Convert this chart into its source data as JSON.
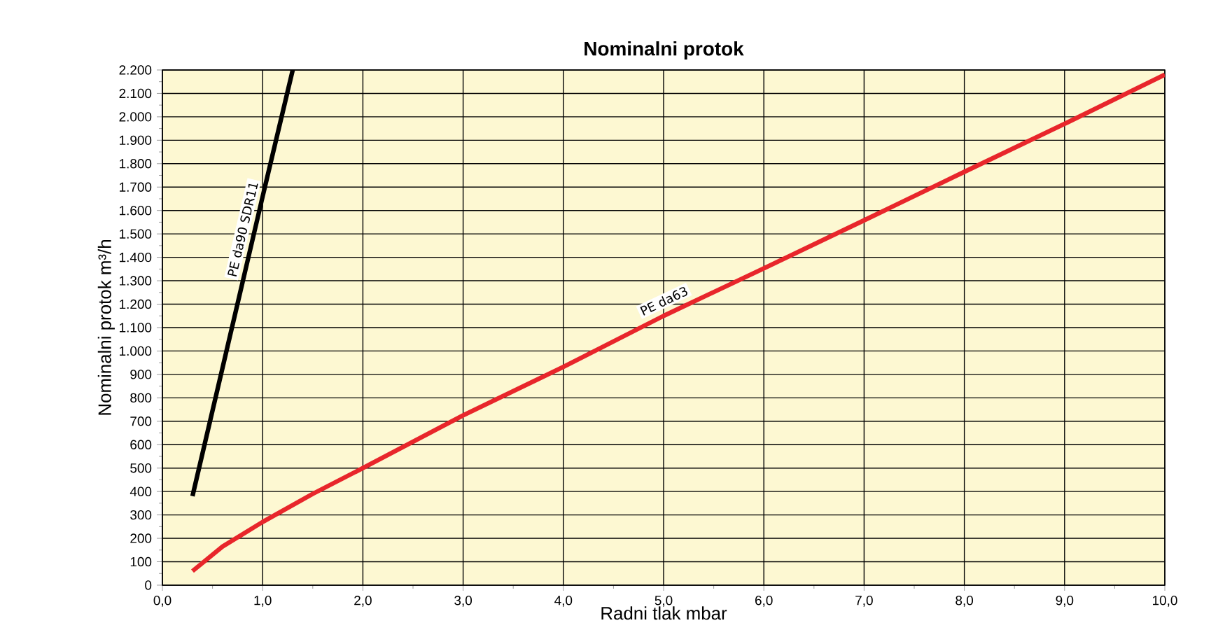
{
  "chart_data": {
    "type": "line",
    "title": "Nominalni protok",
    "xlabel": "Radni tlak mbar",
    "ylabel": "Nominalni protok m³/h",
    "xlim": [
      0,
      10
    ],
    "ylim": [
      0,
      2200
    ],
    "xticks": [
      {
        "value": 0,
        "label": "0,0"
      },
      {
        "value": 1,
        "label": "1,0"
      },
      {
        "value": 2,
        "label": "2,0"
      },
      {
        "value": 3,
        "label": "3,0"
      },
      {
        "value": 4,
        "label": "4,0"
      },
      {
        "value": 5,
        "label": "5,0"
      },
      {
        "value": 6,
        "label": "6,0"
      },
      {
        "value": 7,
        "label": "7,0"
      },
      {
        "value": 8,
        "label": "8,0"
      },
      {
        "value": 9,
        "label": "9,0"
      },
      {
        "value": 10,
        "label": "10,0"
      }
    ],
    "yticks": [
      0,
      100,
      200,
      300,
      400,
      500,
      600,
      700,
      800,
      900,
      {
        "value": 1000,
        "label": "1.000"
      },
      {
        "value": 1100,
        "label": "1.100"
      },
      {
        "value": 1200,
        "label": "1.200"
      },
      {
        "value": 1300,
        "label": "1.300"
      },
      {
        "value": 1400,
        "label": "1.400"
      },
      {
        "value": 1500,
        "label": "1.500"
      },
      {
        "value": 1600,
        "label": "1.600"
      },
      {
        "value": 1700,
        "label": "1.700"
      },
      {
        "value": 1800,
        "label": "1.800"
      },
      {
        "value": 1900,
        "label": "1.900"
      },
      {
        "value": 2000,
        "label": "2.000"
      },
      {
        "value": 2100,
        "label": "2.100"
      },
      {
        "value": 2200,
        "label": "2.200"
      }
    ],
    "grid": true,
    "legend": false,
    "marker": "none",
    "line_style": "solid",
    "series": [
      {
        "name": "PE da90 SDR11",
        "color": "#000000",
        "x": [
          0.3,
          1.0,
          1.3
        ],
        "values": [
          380,
          1660,
          2200
        ]
      },
      {
        "name": "PE da63",
        "color": "#e8262b",
        "x": [
          0.3,
          0.6,
          1.0,
          1.5,
          2.0,
          3.0,
          4.0,
          5.0,
          6.0,
          7.0,
          8.0,
          9.0,
          10.0
        ],
        "values": [
          60,
          165,
          270,
          390,
          500,
          725,
          932,
          1150,
          1353,
          1558,
          1765,
          1970,
          2180
        ]
      }
    ]
  }
}
